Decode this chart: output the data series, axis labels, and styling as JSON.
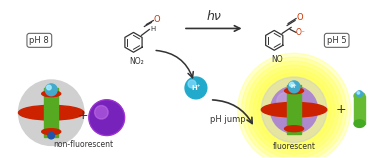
{
  "bg_color": "#ffffff",
  "ph8_label": "pH 8",
  "ph5_label": "pH 5",
  "hv_label": "hν",
  "ph_jump_label": "pH jump",
  "non_fluor_label": "non-fluorescent",
  "fluor_label": "fluorescent",
  "arrow_color": "#333333",
  "figsize": [
    3.78,
    1.58
  ],
  "dpi": 100
}
